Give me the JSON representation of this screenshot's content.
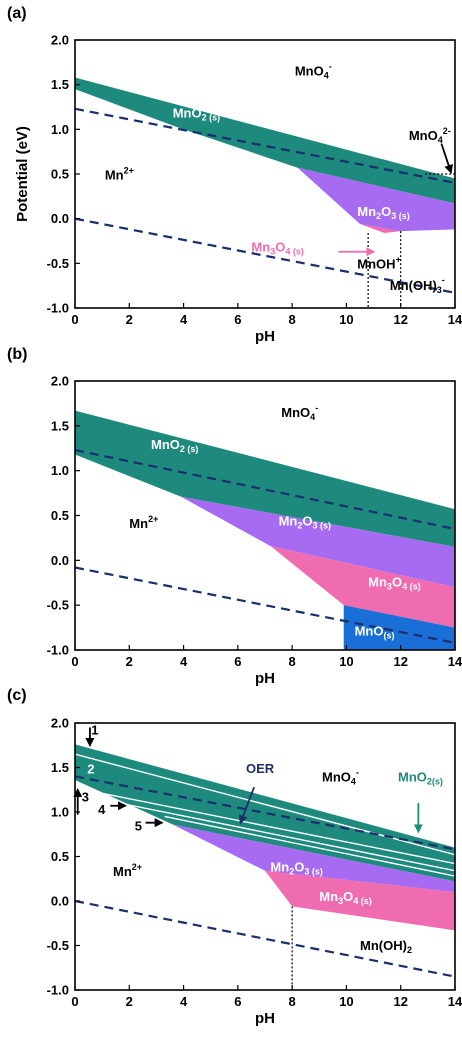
{
  "chart_data": [
    {
      "type": "area",
      "panel_label": "(a)",
      "xlabel": "pH",
      "ylabel": "Potential (eV)",
      "xlim": [
        0,
        14
      ],
      "ylim": [
        -1.0,
        2.0
      ],
      "x_ticks": [
        "0",
        "2",
        "4",
        "6",
        "8",
        "10",
        "12",
        "14"
      ],
      "y_ticks": [
        "2.0",
        "1.5",
        "1.0",
        "0.5",
        "0.0",
        "-0.5",
        "-1.0"
      ],
      "regions": [
        {
          "name": "MnO2 (s)",
          "color": "#1e8a7e",
          "polygon": [
            [
              0,
              1.58
            ],
            [
              14,
              0.45
            ],
            [
              14,
              0.17
            ],
            [
              8.2,
              0.57
            ],
            [
              3.8,
              1.02
            ],
            [
              0,
              1.45
            ]
          ]
        },
        {
          "name": "Mn2O3 (s)",
          "color": "#a66bf0",
          "polygon": [
            [
              8.2,
              0.57
            ],
            [
              14,
              0.17
            ],
            [
              14,
              -0.12
            ],
            [
              12,
              -0.14
            ],
            [
              10.5,
              -0.06
            ]
          ]
        },
        {
          "name": "Mn3O4 (s)",
          "color": "#f06cb0",
          "polygon": [
            [
              10.5,
              -0.06
            ],
            [
              12,
              -0.14
            ],
            [
              11.4,
              -0.16
            ]
          ]
        }
      ],
      "dashed_lines": [
        {
          "points": [
            [
              0,
              1.23
            ],
            [
              14,
              0.4
            ]
          ]
        },
        {
          "points": [
            [
              0,
              0.0
            ],
            [
              14,
              -0.83
            ]
          ]
        }
      ],
      "dotted_lines": [
        {
          "points": [
            [
              10.8,
              -0.16
            ],
            [
              10.8,
              -1.0
            ]
          ]
        },
        {
          "points": [
            [
              12.0,
              -0.14
            ],
            [
              12.0,
              -1.0
            ]
          ]
        },
        {
          "points": [
            [
              12.9,
              0.5
            ],
            [
              14,
              0.5
            ]
          ]
        }
      ],
      "labels": [
        {
          "main": "MnO",
          "sub": "",
          "sup": "4",
          "sup2": "-",
          "x": 8.1,
          "y": 1.6,
          "color": "#000000"
        },
        {
          "main": "MnO",
          "sub": "2 (s)",
          "sup": "",
          "x": 3.6,
          "y": 1.13,
          "color": "#ffffff"
        },
        {
          "main": "MnO",
          "sub": "",
          "sup": "4",
          "sup2": "2-",
          "x": 12.3,
          "y": 0.88,
          "color": "#000000"
        },
        {
          "main": "Mn",
          "sub": "",
          "sup": "2+",
          "x": 1.1,
          "y": 0.44,
          "color": "#000000"
        },
        {
          "main": "Mn",
          "sub": "2",
          "main2": "O",
          "sub2": "3 (s)",
          "x": 10.4,
          "y": 0.03,
          "color": "#ffffff"
        },
        {
          "main": "Mn",
          "sub": "3",
          "main2": "O",
          "sub2": "4 (s)",
          "x": 6.5,
          "y": -0.37,
          "color": "#f06cb0"
        },
        {
          "main": "MnOH",
          "sub": "",
          "sup": "+",
          "x": 10.4,
          "y": -0.56,
          "color": "#000000"
        },
        {
          "main": "Mn(OH)",
          "sub": "3",
          "sup": "-",
          "x": 11.6,
          "y": -0.8,
          "color": "#000000"
        }
      ],
      "arrows": [
        {
          "from": [
            13.5,
            0.84
          ],
          "to": [
            13.85,
            0.52
          ],
          "color": "#000000"
        },
        {
          "from": [
            9.7,
            -0.37
          ],
          "to": [
            11.0,
            -0.37
          ],
          "color": "#f06cb0"
        }
      ]
    },
    {
      "type": "area",
      "panel_label": "(b)",
      "xlabel": "pH",
      "ylabel": "",
      "xlim": [
        0,
        14
      ],
      "ylim": [
        -1.0,
        2.0
      ],
      "x_ticks": [
        "0",
        "2",
        "4",
        "6",
        "8",
        "10",
        "12",
        "14"
      ],
      "y_ticks": [
        "2.0",
        "1.5",
        "1.0",
        "0.5",
        "0.0",
        "-0.5",
        "-1.0"
      ],
      "regions": [
        {
          "name": "MnO2 (s)",
          "color": "#1e8a7e",
          "polygon": [
            [
              0,
              1.67
            ],
            [
              14,
              0.57
            ],
            [
              14,
              0.15
            ],
            [
              3.9,
              0.71
            ],
            [
              0,
              1.18
            ]
          ]
        },
        {
          "name": "Mn2O3 (s)",
          "color": "#a66bf0",
          "polygon": [
            [
              3.9,
              0.71
            ],
            [
              14,
              0.15
            ],
            [
              14,
              -0.3
            ],
            [
              7.2,
              0.16
            ]
          ]
        },
        {
          "name": "Mn3O4 (s)",
          "color": "#f06cb0",
          "polygon": [
            [
              7.2,
              0.16
            ],
            [
              14,
              -0.3
            ],
            [
              14,
              -0.75
            ],
            [
              9.9,
              -0.5
            ]
          ]
        },
        {
          "name": "MnO(s)",
          "color": "#1a6fd6",
          "polygon": [
            [
              9.9,
              -0.5
            ],
            [
              14,
              -0.75
            ],
            [
              14,
              -1.0
            ],
            [
              9.9,
              -1.0
            ]
          ]
        }
      ],
      "dashed_lines": [
        {
          "points": [
            [
              0,
              1.23
            ],
            [
              14,
              0.35
            ]
          ]
        },
        {
          "points": [
            [
              0,
              -0.08
            ],
            [
              14,
              -0.92
            ]
          ]
        }
      ],
      "dotted_lines": [],
      "labels": [
        {
          "main": "MnO",
          "sub": "",
          "sup": "4",
          "sup2": "-",
          "x": 7.6,
          "y": 1.6,
          "color": "#000000"
        },
        {
          "main": "MnO",
          "sub": "2 (s)",
          "sup": "",
          "x": 2.8,
          "y": 1.24,
          "color": "#ffffff"
        },
        {
          "main": "Mn",
          "sub": "",
          "sup": "2+",
          "x": 2.0,
          "y": 0.36,
          "color": "#000000"
        },
        {
          "main": "Mn",
          "sub": "2",
          "main2": "O",
          "sub2": "3 (s)",
          "x": 7.5,
          "y": 0.39,
          "color": "#ffffff"
        },
        {
          "main": "Mn",
          "sub": "3",
          "main2": "O",
          "sub2": "4 (s)",
          "x": 10.8,
          "y": -0.29,
          "color": "#ffffff"
        },
        {
          "main": "MnO",
          "sub": "(s)",
          "sup": "",
          "x": 10.3,
          "y": -0.84,
          "color": "#ffffff"
        }
      ],
      "arrows": []
    },
    {
      "type": "area",
      "panel_label": "(c)",
      "xlabel": "pH",
      "ylabel": "",
      "xlim": [
        0,
        14
      ],
      "ylim": [
        -1.0,
        2.0
      ],
      "x_ticks": [
        "0",
        "2",
        "4",
        "6",
        "8",
        "10",
        "12",
        "14"
      ],
      "y_ticks": [
        "2.0",
        "1.5",
        "1.0",
        "0.5",
        "0.0",
        "-0.5",
        "-1.0"
      ],
      "regions": [
        {
          "name": "MnO2(s)",
          "color": "#1e8a7e",
          "polygon": [
            [
              0,
              1.76
            ],
            [
              14,
              0.6
            ],
            [
              14,
              0.22
            ],
            [
              3.6,
              0.86
            ],
            [
              0,
              1.36
            ]
          ]
        },
        {
          "name": "Mn2O3 (s)",
          "color": "#a66bf0",
          "polygon": [
            [
              3.6,
              0.86
            ],
            [
              14,
              0.22
            ],
            [
              14,
              0.1
            ],
            [
              7.0,
              0.34
            ]
          ]
        },
        {
          "name": "Mn3O4 (s)",
          "color": "#f06cb0",
          "polygon": [
            [
              7.0,
              0.34
            ],
            [
              14,
              0.1
            ],
            [
              14,
              -0.33
            ],
            [
              8.0,
              -0.06
            ]
          ]
        }
      ],
      "white_lines": [
        {
          "points": [
            [
              0,
              1.65
            ],
            [
              14,
              0.52
            ]
          ]
        },
        {
          "points": [
            [
              0,
              1.27
            ],
            [
              14,
              0.42
            ]
          ]
        },
        {
          "points": [
            [
              1.0,
              1.14
            ],
            [
              14,
              0.34
            ]
          ]
        },
        {
          "points": [
            [
              3.3,
              0.95
            ],
            [
              14,
              0.28
            ]
          ]
        }
      ],
      "dashed_lines": [
        {
          "points": [
            [
              0,
              1.4
            ],
            [
              14,
              0.58
            ]
          ]
        },
        {
          "points": [
            [
              0,
              0.0
            ],
            [
              14,
              -0.85
            ]
          ]
        }
      ],
      "dotted_lines": [
        {
          "points": [
            [
              8.0,
              -0.06
            ],
            [
              8.0,
              -1.0
            ]
          ]
        }
      ],
      "labels": [
        {
          "main": "1",
          "sub": "",
          "sup": "",
          "x": 0.6,
          "y": 1.87,
          "color": "#000000",
          "thin": true
        },
        {
          "main": "2",
          "sub": "",
          "sup": "",
          "x": 0.45,
          "y": 1.43,
          "color": "#ffffff",
          "thin": true
        },
        {
          "main": "3",
          "sub": "",
          "sup": "",
          "x": 0.25,
          "y": 1.12,
          "color": "#000000",
          "thin": true
        },
        {
          "main": "4",
          "sub": "",
          "sup": "",
          "x": 0.85,
          "y": 0.98,
          "color": "#000000",
          "thin": true
        },
        {
          "main": "5",
          "sub": "",
          "sup": "",
          "x": 2.2,
          "y": 0.79,
          "color": "#000000",
          "thin": true
        },
        {
          "main": "OER",
          "sub": "",
          "sup": "",
          "x": 6.3,
          "y": 1.44,
          "color": "#1b2f6b",
          "thin": true
        },
        {
          "main": "MnO",
          "sub": "",
          "sup": "4",
          "sup2": "-",
          "x": 9.1,
          "y": 1.34,
          "color": "#000000"
        },
        {
          "main": "MnO",
          "sub": "2(s)",
          "sup": "",
          "x": 11.9,
          "y": 1.34,
          "color": "#1e8a7e"
        },
        {
          "main": "Mn",
          "sub": "",
          "sup": "2+",
          "x": 1.4,
          "y": 0.28,
          "color": "#000000"
        },
        {
          "main": "Mn",
          "sub": "2",
          "main2": "O",
          "sub2": "3 (s)",
          "x": 7.2,
          "y": 0.33,
          "color": "#ffffff"
        },
        {
          "main": "Mn",
          "sub": "3",
          "main2": "O",
          "sub2": "4 (s)",
          "x": 9.0,
          "y": 0.0,
          "color": "#ffffff"
        },
        {
          "main": "Mn(OH)",
          "sub": "2",
          "sup": "",
          "x": 10.5,
          "y": -0.55,
          "color": "#000000"
        }
      ],
      "arrows": [
        {
          "from": [
            0.55,
            1.95
          ],
          "to": [
            0.55,
            1.75
          ],
          "color": "#000000"
        },
        {
          "from": [
            0.1,
            0.97
          ],
          "to": [
            0.1,
            1.25
          ],
          "color": "#000000"
        },
        {
          "from": [
            1.3,
            1.07
          ],
          "to": [
            1.85,
            1.07
          ],
          "color": "#000000"
        },
        {
          "from": [
            2.6,
            0.88
          ],
          "to": [
            3.2,
            0.88
          ],
          "color": "#000000"
        },
        {
          "from": [
            6.6,
            1.28
          ],
          "to": [
            6.1,
            0.88
          ],
          "color": "#1b2f6b"
        },
        {
          "from": [
            12.65,
            1.1
          ],
          "to": [
            12.65,
            0.78
          ],
          "color": "#1e8a7e"
        }
      ]
    }
  ]
}
